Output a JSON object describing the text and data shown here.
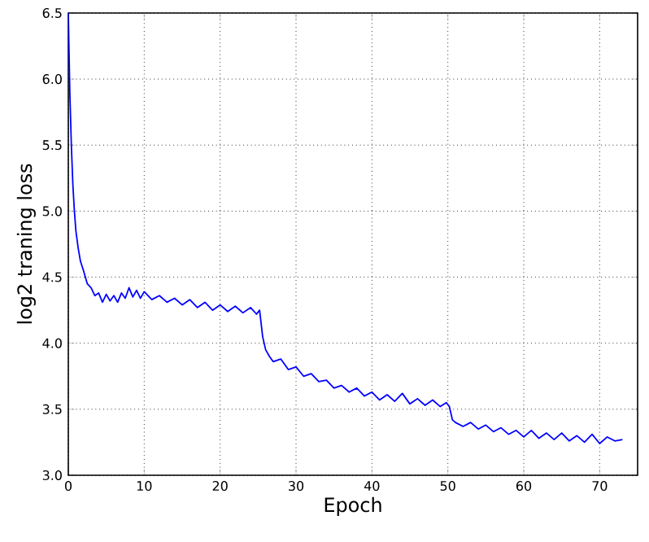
{
  "chart_data": {
    "type": "line",
    "xlabel": "Epoch",
    "ylabel": "log2 traning loss",
    "xlim": [
      0,
      75
    ],
    "ylim": [
      3.0,
      6.5
    ],
    "xticks": [
      0,
      10,
      20,
      30,
      40,
      50,
      60,
      70
    ],
    "yticks": [
      {
        "value": 3.0,
        "label": "3.0"
      },
      {
        "value": 3.5,
        "label": "3.5"
      },
      {
        "value": 4.0,
        "label": "4.0"
      },
      {
        "value": 4.5,
        "label": "4.5"
      },
      {
        "value": 5.0,
        "label": "5.0"
      },
      {
        "value": 5.5,
        "label": "5.5"
      },
      {
        "value": 6.0,
        "label": "6.0"
      },
      {
        "value": 6.5,
        "label": "6.5"
      }
    ],
    "grid": true,
    "line_style": "solid",
    "series": [
      {
        "color": "#0000ff",
        "x": [
          0,
          0.1,
          0.2,
          0.4,
          0.6,
          0.8,
          1,
          1.3,
          1.6,
          2,
          2.5,
          3,
          3.5,
          4,
          4.5,
          5,
          5.5,
          6,
          6.5,
          7,
          7.5,
          8,
          8.5,
          9,
          9.5,
          10,
          11,
          12,
          13,
          14,
          15,
          16,
          17,
          18,
          19,
          20,
          21,
          22,
          23,
          24,
          24.8,
          25.2,
          25.6,
          26,
          26.5,
          27,
          28,
          29,
          30,
          31,
          32,
          33,
          34,
          35,
          36,
          37,
          38,
          39,
          40,
          41,
          42,
          43,
          44,
          45,
          46,
          47,
          48,
          49,
          49.8,
          50.2,
          50.6,
          51,
          52,
          53,
          54,
          55,
          56,
          57,
          58,
          59,
          60,
          61,
          62,
          63,
          64,
          65,
          66,
          67,
          68,
          69,
          70,
          71,
          72,
          73
        ],
        "values": [
          6.5,
          6.2,
          5.9,
          5.5,
          5.2,
          5.0,
          4.85,
          4.72,
          4.62,
          4.55,
          4.45,
          4.42,
          4.36,
          4.38,
          4.31,
          4.37,
          4.32,
          4.36,
          4.31,
          4.38,
          4.34,
          4.42,
          4.35,
          4.4,
          4.34,
          4.39,
          4.33,
          4.36,
          4.31,
          4.34,
          4.29,
          4.33,
          4.27,
          4.31,
          4.25,
          4.29,
          4.24,
          4.28,
          4.23,
          4.27,
          4.22,
          4.25,
          4.05,
          3.95,
          3.9,
          3.86,
          3.88,
          3.8,
          3.82,
          3.75,
          3.77,
          3.71,
          3.72,
          3.66,
          3.68,
          3.63,
          3.66,
          3.6,
          3.63,
          3.57,
          3.61,
          3.56,
          3.62,
          3.54,
          3.58,
          3.53,
          3.57,
          3.52,
          3.55,
          3.52,
          3.42,
          3.4,
          3.37,
          3.4,
          3.35,
          3.38,
          3.33,
          3.36,
          3.31,
          3.34,
          3.29,
          3.34,
          3.28,
          3.32,
          3.27,
          3.32,
          3.26,
          3.3,
          3.25,
          3.31,
          3.24,
          3.29,
          3.26,
          3.27
        ]
      }
    ]
  }
}
